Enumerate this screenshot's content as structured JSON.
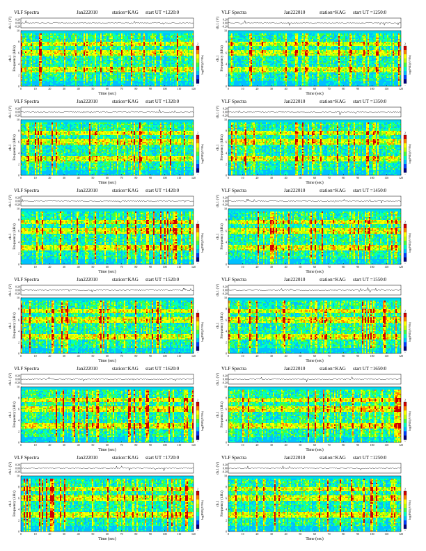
{
  "chart_data": [
    {
      "type": "heatmap",
      "title": "VLF Spectra",
      "date": "Jan222010",
      "station": "station=KAG",
      "start_ut": "start  UT  =1220:0",
      "top_ylabel": "ch.1 (V)",
      "top_yticks": [
        "0.20",
        "0.00",
        "-0.20"
      ],
      "ylabel_channel": "ch.1",
      "ylabel": "Frequency  (kHz)",
      "yticks": [
        "0",
        "2",
        "4",
        "6",
        "8",
        "10"
      ],
      "ylim": [
        0,
        10
      ],
      "xlabel": "Time  (sec)",
      "xticks": [
        "0",
        "10",
        "20",
        "30",
        "40",
        "50",
        "60",
        "70",
        "80",
        "90",
        "100",
        "110",
        "120"
      ],
      "xlim": [
        0,
        120
      ],
      "colorbar_label": "log(PSD)(V²/Hz)",
      "colorbar_ticks": [
        "2",
        "-"
      ],
      "colormap": [
        "#000080",
        "#0040ff",
        "#00c0ff",
        "#00ffc0",
        "#40ff40",
        "#c0ff00",
        "#ffff00",
        "#ff8000",
        "#d00000"
      ],
      "series_intensity_seed": 1
    },
    {
      "type": "heatmap",
      "title": "VLF Spectra",
      "date": "Jan222010",
      "station": "station=KAG",
      "start_ut": "start  UT  =1250:0",
      "top_ylabel": "ch.1 (V)",
      "top_yticks": [
        "0.20",
        "0.00",
        "-0.20"
      ],
      "ylabel_channel": "ch.1",
      "ylabel": "Frequency  (kHz)",
      "yticks": [
        "0",
        "2",
        "4",
        "6",
        "8",
        "10"
      ],
      "ylim": [
        0,
        10
      ],
      "xlabel": "Time  (sec)",
      "xticks": [
        "0",
        "10",
        "20",
        "30",
        "40",
        "50",
        "60",
        "70",
        "80",
        "90",
        "100",
        "110",
        "120"
      ],
      "xlim": [
        0,
        120
      ],
      "colorbar_label": "log(PSD)(V²/Hz)",
      "colorbar_ticks": [
        "2",
        "-"
      ],
      "colormap": [
        "#000080",
        "#0040ff",
        "#00c0ff",
        "#00ffc0",
        "#40ff40",
        "#c0ff00",
        "#ffff00",
        "#ff8000",
        "#d00000"
      ],
      "series_intensity_seed": 2
    },
    {
      "type": "heatmap",
      "title": "VLF Spectra",
      "date": "Jan222010",
      "station": "station=KAG",
      "start_ut": "start  UT  =1320:0",
      "top_ylabel": "ch.1 (V)",
      "top_yticks": [
        "0.20",
        "0.00",
        "-0.20"
      ],
      "ylabel_channel": "ch.1",
      "ylabel": "Frequency  (kHz)",
      "yticks": [
        "0",
        "2",
        "4",
        "6",
        "8",
        "10"
      ],
      "ylim": [
        0,
        10
      ],
      "xlabel": "Time  (sec)",
      "xticks": [
        "0",
        "10",
        "20",
        "30",
        "40",
        "50",
        "60",
        "70",
        "80",
        "90",
        "100",
        "110",
        "120"
      ],
      "xlim": [
        0,
        120
      ],
      "colorbar_label": "log(PSD)(V²/Hz)",
      "colorbar_ticks": [
        "2",
        "-"
      ],
      "colormap": [
        "#000080",
        "#0040ff",
        "#00c0ff",
        "#00ffc0",
        "#40ff40",
        "#c0ff00",
        "#ffff00",
        "#ff8000",
        "#d00000"
      ],
      "series_intensity_seed": 3
    },
    {
      "type": "heatmap",
      "title": "VLF Spectra",
      "date": "Jan222010",
      "station": "station=KAG",
      "start_ut": "start  UT  =1350:0",
      "top_ylabel": "ch.1 (V)",
      "top_yticks": [
        "0.20",
        "0.00",
        "-0.20"
      ],
      "ylabel_channel": "ch.1",
      "ylabel": "Frequency  (kHz)",
      "yticks": [
        "0",
        "2",
        "4",
        "6",
        "8",
        "10"
      ],
      "ylim": [
        0,
        10
      ],
      "xlabel": "Time  (sec)",
      "xticks": [
        "0",
        "10",
        "20",
        "30",
        "40",
        "50",
        "60",
        "70",
        "80",
        "90",
        "100",
        "110",
        "120"
      ],
      "xlim": [
        0,
        120
      ],
      "colorbar_label": "log(PSD)(V²/Hz)",
      "colorbar_ticks": [
        "2",
        "-"
      ],
      "colormap": [
        "#000080",
        "#0040ff",
        "#00c0ff",
        "#00ffc0",
        "#40ff40",
        "#c0ff00",
        "#ffff00",
        "#ff8000",
        "#d00000"
      ],
      "series_intensity_seed": 4
    },
    {
      "type": "heatmap",
      "title": "VLF Spectra",
      "date": "Jan222010",
      "station": "station=KAG",
      "start_ut": "start  UT  =1420:0",
      "top_ylabel": "ch.1 (V)",
      "top_yticks": [
        "0.20",
        "0.00",
        "-0.20"
      ],
      "ylabel_channel": "ch.1",
      "ylabel": "Frequency  (kHz)",
      "yticks": [
        "0",
        "2",
        "4",
        "6",
        "8",
        "10"
      ],
      "ylim": [
        0,
        10
      ],
      "xlabel": "Time  (sec)",
      "xticks": [
        "0",
        "10",
        "20",
        "30",
        "40",
        "50",
        "60",
        "70",
        "80",
        "90",
        "100",
        "110",
        "120"
      ],
      "xlim": [
        0,
        120
      ],
      "colorbar_label": "log(PSD)(V²/Hz)",
      "colorbar_ticks": [
        "2",
        "-"
      ],
      "colormap": [
        "#000080",
        "#0040ff",
        "#00c0ff",
        "#00ffc0",
        "#40ff40",
        "#c0ff00",
        "#ffff00",
        "#ff8000",
        "#d00000"
      ],
      "series_intensity_seed": 5
    },
    {
      "type": "heatmap",
      "title": "VLF Spectra",
      "date": "Jan222010",
      "station": "station=KAG",
      "start_ut": "start  UT  =1450:0",
      "top_ylabel": "ch.1 (V)",
      "top_yticks": [
        "0.20",
        "0.00",
        "-0.20"
      ],
      "ylabel_channel": "ch.1",
      "ylabel": "Frequency  (kHz)",
      "yticks": [
        "0",
        "2",
        "4",
        "6",
        "8",
        "10"
      ],
      "ylim": [
        0,
        10
      ],
      "xlabel": "Time  (sec)",
      "xticks": [
        "0",
        "10",
        "20",
        "30",
        "40",
        "50",
        "60",
        "70",
        "80",
        "90",
        "100",
        "110",
        "120"
      ],
      "xlim": [
        0,
        120
      ],
      "colorbar_label": "log(PSD)(V²/Hz)",
      "colorbar_ticks": [
        "2",
        "-"
      ],
      "colormap": [
        "#000080",
        "#0040ff",
        "#00c0ff",
        "#00ffc0",
        "#40ff40",
        "#c0ff00",
        "#ffff00",
        "#ff8000",
        "#d00000"
      ],
      "series_intensity_seed": 6
    },
    {
      "type": "heatmap",
      "title": "VLF Spectra",
      "date": "Jan222010",
      "station": "station=KAG",
      "start_ut": "start  UT  =1520:0",
      "top_ylabel": "ch.1 (V)",
      "top_yticks": [
        "0.20",
        "0.00",
        "-0.20"
      ],
      "ylabel_channel": "ch.1",
      "ylabel": "Frequency  (kHz)",
      "yticks": [
        "0",
        "2",
        "4",
        "6",
        "8",
        "10"
      ],
      "ylim": [
        0,
        10
      ],
      "xlabel": "Time  (sec)",
      "xticks": [
        "0",
        "10",
        "20",
        "30",
        "40",
        "50",
        "60",
        "70",
        "80",
        "90",
        "100",
        "110",
        "120"
      ],
      "xlim": [
        0,
        120
      ],
      "colorbar_label": "log(PSD)(V²/Hz)",
      "colorbar_ticks": [
        "2",
        "-"
      ],
      "colormap": [
        "#000080",
        "#0040ff",
        "#00c0ff",
        "#00ffc0",
        "#40ff40",
        "#c0ff00",
        "#ffff00",
        "#ff8000",
        "#d00000"
      ],
      "series_intensity_seed": 7
    },
    {
      "type": "heatmap",
      "title": "VLF Spectra",
      "date": "Jan222010",
      "station": "station=KAG",
      "start_ut": "start  UT  =1550:0",
      "top_ylabel": "ch.1 (V)",
      "top_yticks": [
        "0.20",
        "0.00",
        "-0.20"
      ],
      "ylabel_channel": "ch.1",
      "ylabel": "Frequency  (kHz)",
      "yticks": [
        "0",
        "2",
        "4",
        "6",
        "8",
        "10"
      ],
      "ylim": [
        0,
        10
      ],
      "xlabel": "Time  (sec)",
      "xticks": [
        "0",
        "10",
        "20",
        "30",
        "40",
        "50",
        "60",
        "70",
        "80",
        "90",
        "100",
        "110",
        "120"
      ],
      "xlim": [
        0,
        120
      ],
      "colorbar_label": "log(PSD)(V²/Hz)",
      "colorbar_ticks": [
        "2",
        "-"
      ],
      "colormap": [
        "#000080",
        "#0040ff",
        "#00c0ff",
        "#00ffc0",
        "#40ff40",
        "#c0ff00",
        "#ffff00",
        "#ff8000",
        "#d00000"
      ],
      "series_intensity_seed": 8
    },
    {
      "type": "heatmap",
      "title": "VLF Spectra",
      "date": "Jan222010",
      "station": "station=KAG",
      "start_ut": "start  UT  =1620:0",
      "top_ylabel": "ch.1 (V)",
      "top_yticks": [
        "0.20",
        "0.00",
        "-0.20"
      ],
      "ylabel_channel": "ch.1",
      "ylabel": "Frequency  (kHz)",
      "yticks": [
        "0",
        "2",
        "4",
        "6",
        "8",
        "10"
      ],
      "ylim": [
        0,
        10
      ],
      "xlabel": "Time  (sec)",
      "xticks": [
        "0",
        "10",
        "20",
        "30",
        "40",
        "50",
        "60",
        "70",
        "80",
        "90",
        "100",
        "110",
        "120"
      ],
      "xlim": [
        0,
        120
      ],
      "colorbar_label": "log(PSD)(V²/Hz)",
      "colorbar_ticks": [
        "2",
        "-"
      ],
      "colormap": [
        "#000080",
        "#0040ff",
        "#00c0ff",
        "#00ffc0",
        "#40ff40",
        "#c0ff00",
        "#ffff00",
        "#ff8000",
        "#d00000"
      ],
      "series_intensity_seed": 9
    },
    {
      "type": "heatmap",
      "title": "VLF Spectra",
      "date": "Jan222010",
      "station": "station=KAG",
      "start_ut": "start  UT  =1650:0",
      "top_ylabel": "ch.1 (V)",
      "top_yticks": [
        "0.20",
        "0.00",
        "-0.20"
      ],
      "ylabel_channel": "ch.1",
      "ylabel": "Frequency  (kHz)",
      "yticks": [
        "0",
        "2",
        "4",
        "6",
        "8",
        "10"
      ],
      "ylim": [
        0,
        10
      ],
      "xlabel": "Time  (sec)",
      "xticks": [
        "0",
        "10",
        "20",
        "30",
        "40",
        "50",
        "60",
        "70",
        "80",
        "90",
        "100",
        "110",
        "120"
      ],
      "xlim": [
        0,
        120
      ],
      "colorbar_label": "log(PSD)(V²/Hz)",
      "colorbar_ticks": [
        "2",
        "-"
      ],
      "colormap": [
        "#000080",
        "#0040ff",
        "#00c0ff",
        "#00ffc0",
        "#40ff40",
        "#c0ff00",
        "#ffff00",
        "#ff8000",
        "#d00000"
      ],
      "series_intensity_seed": 10
    },
    {
      "type": "heatmap",
      "title": "VLF Spectra",
      "date": "Jan222010",
      "station": "station=KAG",
      "start_ut": "start  UT  =1720:0",
      "top_ylabel": "ch.1 (V)",
      "top_yticks": [
        "0.20",
        "0.00",
        "-0.20"
      ],
      "ylabel_channel": "ch.1",
      "ylabel": "Frequency  (kHz)",
      "yticks": [
        "0",
        "2",
        "4",
        "6",
        "8",
        "10"
      ],
      "ylim": [
        0,
        10
      ],
      "xlabel": "Time  (sec)",
      "xticks": [
        "0",
        "10",
        "20",
        "30",
        "40",
        "50",
        "60",
        "70",
        "80",
        "90",
        "100",
        "110",
        "120"
      ],
      "xlim": [
        0,
        120
      ],
      "colorbar_label": "log(PSD)(V²/Hz)",
      "colorbar_ticks": [
        "2",
        "-"
      ],
      "colormap": [
        "#000080",
        "#0040ff",
        "#00c0ff",
        "#00ffc0",
        "#40ff40",
        "#c0ff00",
        "#ffff00",
        "#ff8000",
        "#d00000"
      ],
      "series_intensity_seed": 11
    },
    {
      "type": "heatmap",
      "title": "VLF Spectra",
      "date": "Jan222010",
      "station": "station=KAG",
      "start_ut": "start  UT  =1250:0",
      "top_ylabel": "ch.1 (V)",
      "top_yticks": [
        "0.20",
        "0.00",
        "-0.20"
      ],
      "ylabel_channel": "ch.1",
      "ylabel": "Frequency  (kHz)",
      "yticks": [
        "0",
        "2",
        "4",
        "6",
        "8",
        "10"
      ],
      "ylim": [
        0,
        10
      ],
      "xlabel": "Time  (sec)",
      "xticks": [
        "0",
        "10",
        "20",
        "30",
        "40",
        "50",
        "60",
        "70",
        "80",
        "90",
        "100",
        "110",
        "120"
      ],
      "xlim": [
        0,
        120
      ],
      "colorbar_label": "log(PSD)(V²/Hz)",
      "colorbar_ticks": [
        "2",
        "-"
      ],
      "colormap": [
        "#000080",
        "#0040ff",
        "#00c0ff",
        "#00ffc0",
        "#40ff40",
        "#c0ff00",
        "#ffff00",
        "#ff8000",
        "#d00000"
      ],
      "series_intensity_seed": 12
    }
  ]
}
